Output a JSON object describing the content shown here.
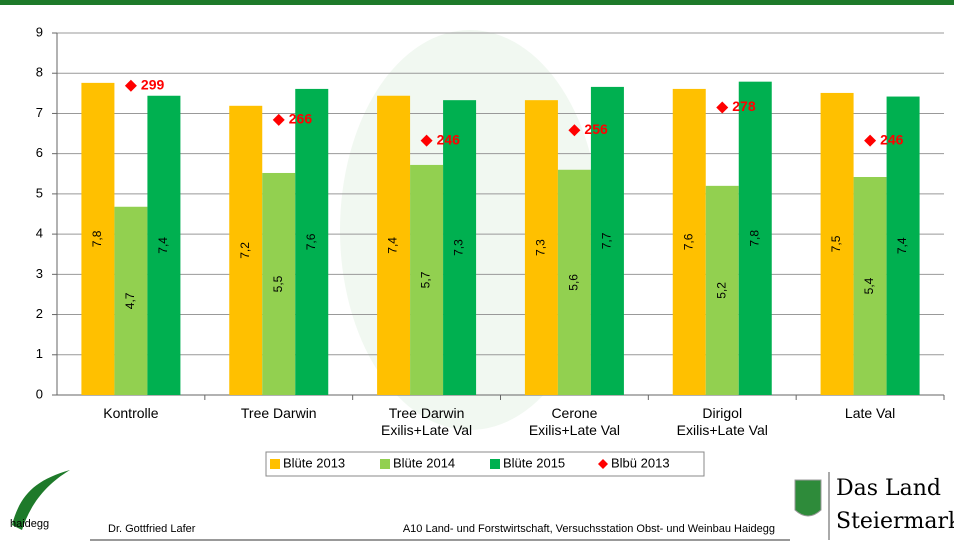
{
  "chart_data": {
    "type": "bar",
    "categories": [
      "Kontrolle",
      "Tree Darwin",
      "Tree Darwin\nExilis+Late Val",
      "Cerone\nExilis+Late Val",
      "Dirigol\nExilis+Late Val",
      "Late Val"
    ],
    "series": [
      {
        "name": "Blüte 2013",
        "color": "#ffc000",
        "values": [
          7.76,
          7.19,
          7.44,
          7.33,
          7.61,
          7.51
        ],
        "value_labels": [
          "7,8",
          "7,2",
          "7,4",
          "7,3",
          "7,6",
          "7,5"
        ]
      },
      {
        "name": "Blüte 2014",
        "color": "#92d050",
        "values": [
          4.68,
          5.52,
          5.72,
          5.6,
          5.2,
          5.42
        ],
        "value_labels": [
          "4,7",
          "5,5",
          "5,7",
          "5,6",
          "5,2",
          "5,4"
        ]
      },
      {
        "name": "Blüte 2015",
        "color": "#00b050",
        "values": [
          7.44,
          7.61,
          7.33,
          7.66,
          7.79,
          7.42
        ],
        "value_labels": [
          "7,4",
          "7,6",
          "7,3",
          "7,7",
          "7,8",
          "7,4"
        ]
      },
      {
        "name": "Blbü 2013",
        "color": "#ff0000",
        "type": "scatter",
        "axis": "y2",
        "values": [
          299,
          266,
          246,
          256,
          278,
          246
        ]
      }
    ],
    "ylim": [
      0,
      9
    ],
    "yticks": [
      0,
      1,
      2,
      3,
      4,
      5,
      6,
      7,
      8,
      9
    ],
    "y2lim": [
      0,
      350
    ],
    "grid": true
  },
  "footer": {
    "logo_text": "haidegg",
    "author": "Dr. Gottfried Lafer",
    "institution": "A10 Land- und Forstwirtschaft, Versuchsstation Obst- und Weinbau Haidegg",
    "brand_line1": "Das Land",
    "brand_line2": "Steiermark"
  }
}
